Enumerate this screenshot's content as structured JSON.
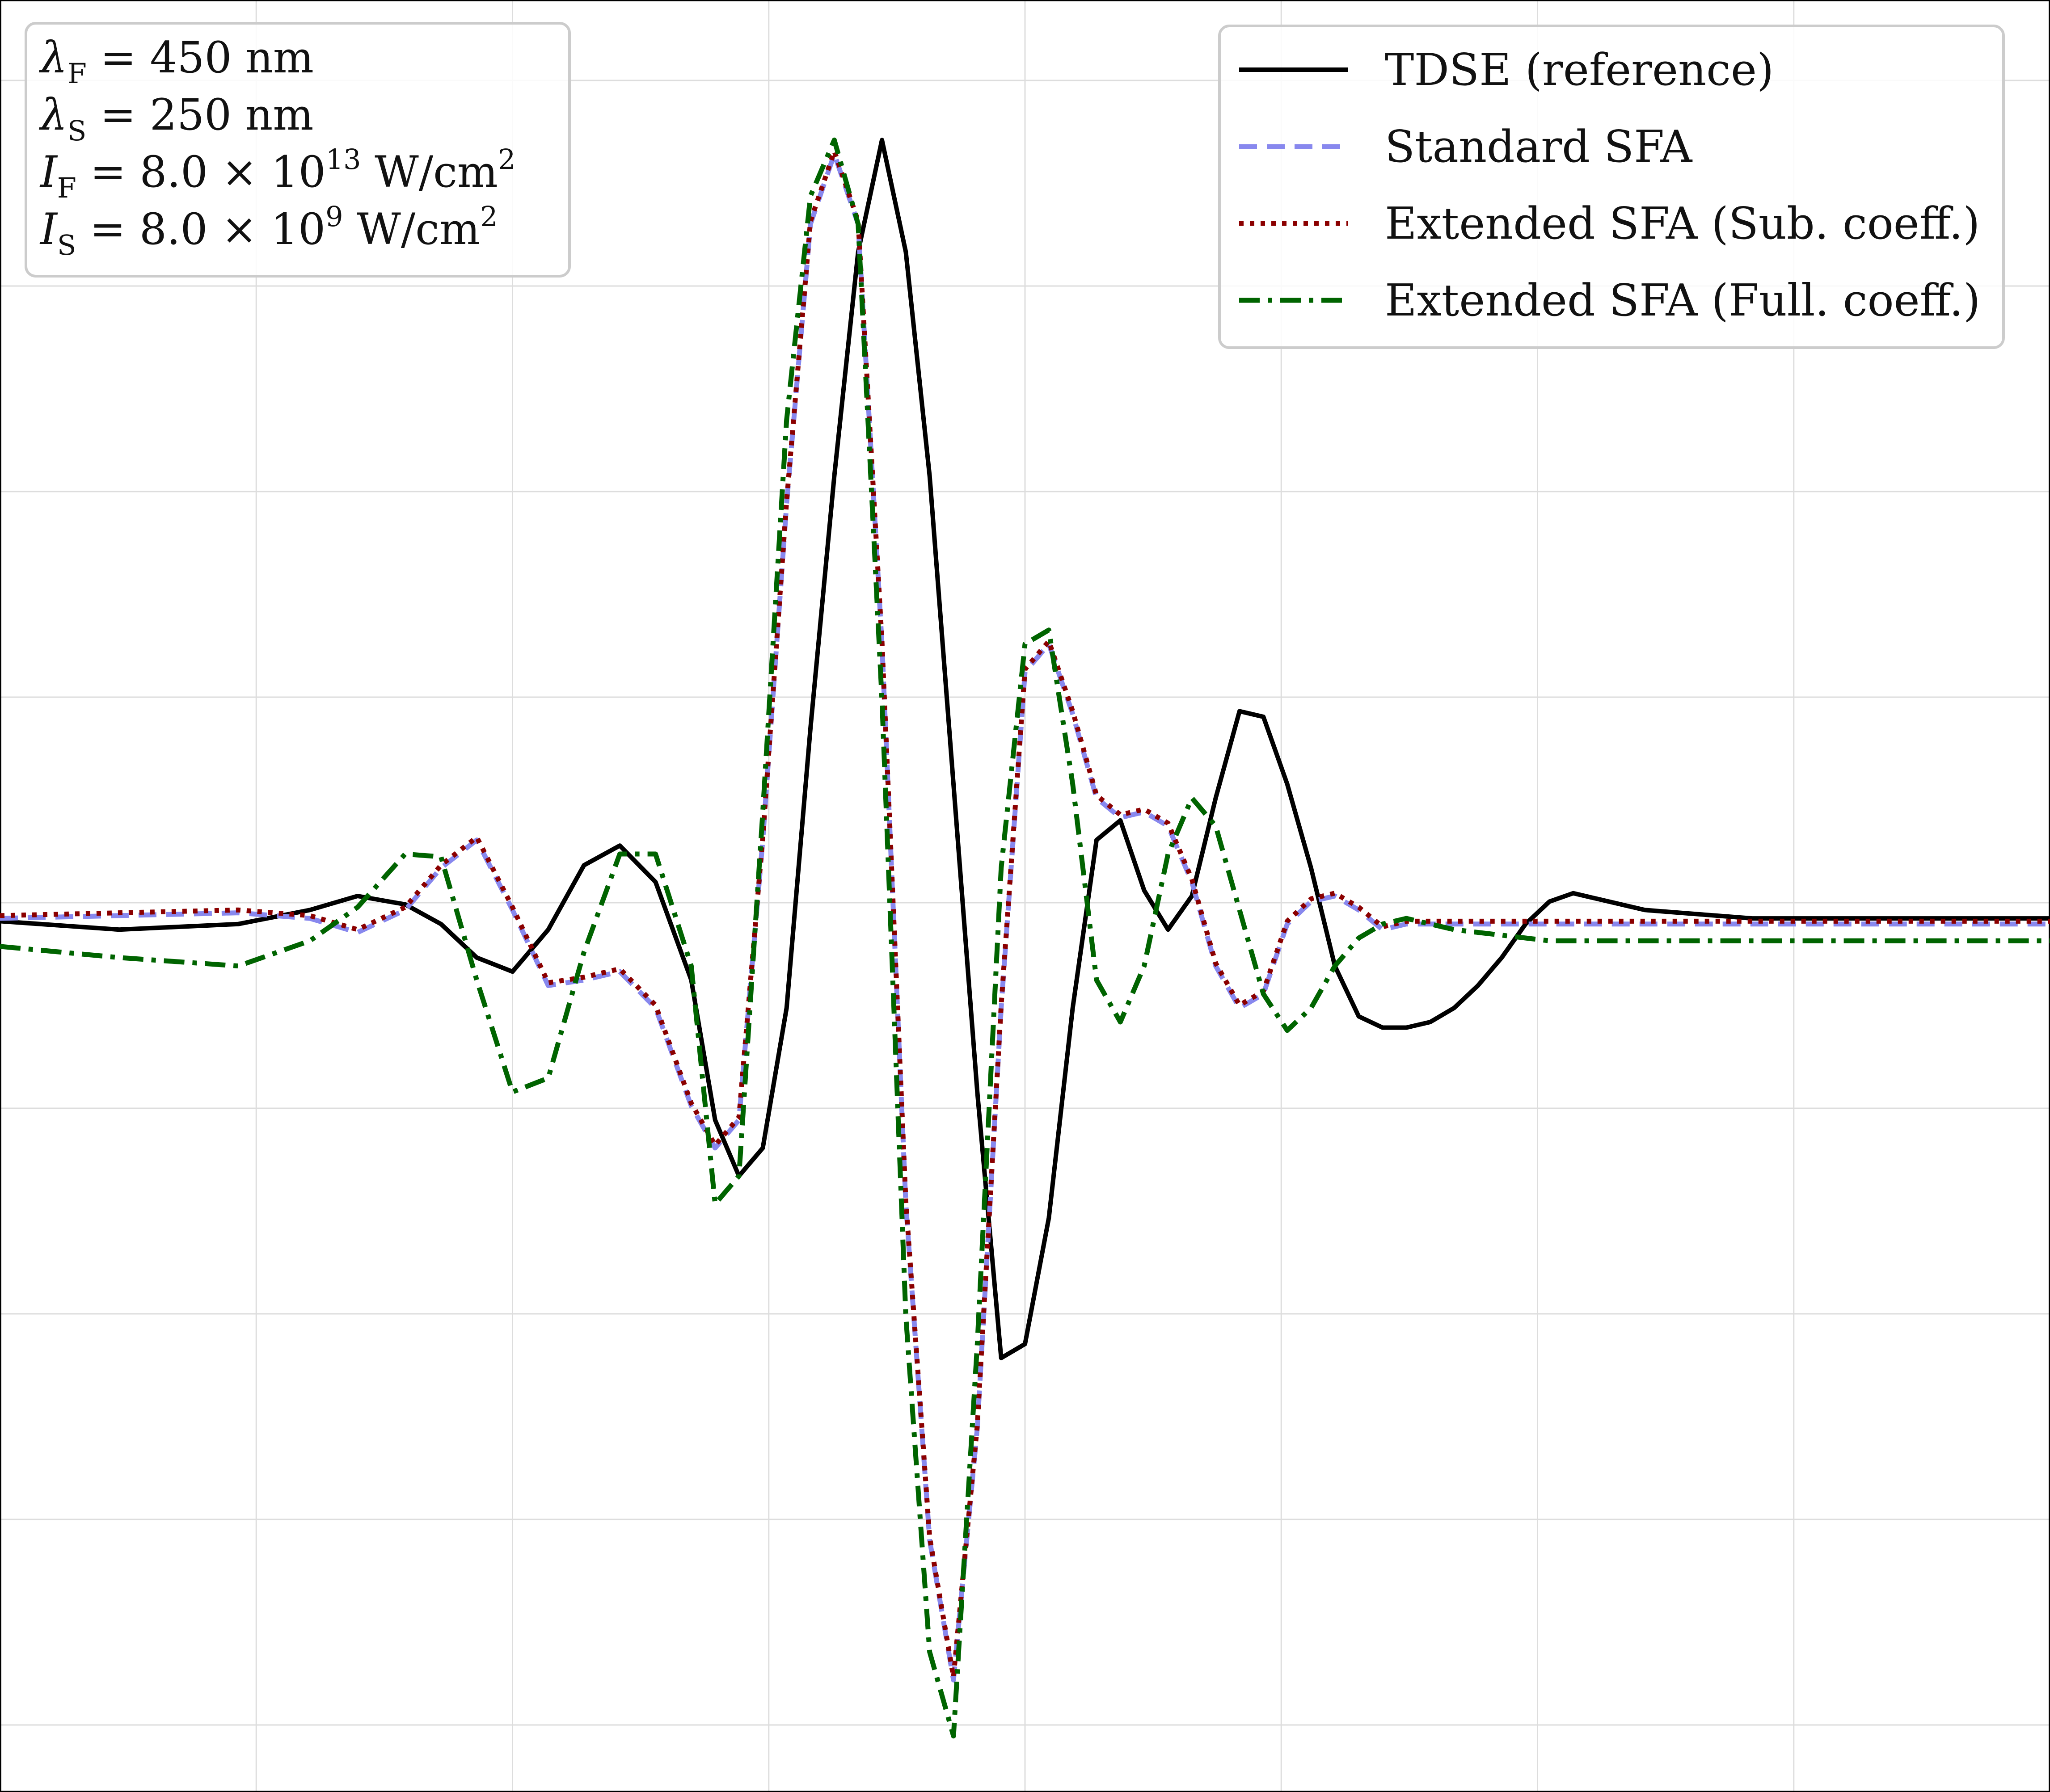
{
  "chart_data": {
    "type": "line",
    "x": [
      -4.3,
      -3.8,
      -3.3,
      -3.0,
      -2.8,
      -2.6,
      -2.45,
      -2.3,
      -2.15,
      -2.0,
      -1.85,
      -1.7,
      -1.55,
      -1.4,
      -1.3,
      -1.2,
      -1.1,
      -1.0,
      -0.9,
      -0.8,
      -0.7,
      -0.6,
      -0.5,
      -0.4,
      -0.3,
      -0.2,
      -0.1,
      0.0,
      0.1,
      0.2,
      0.3,
      0.4,
      0.5,
      0.6,
      0.7,
      0.8,
      0.9,
      1.0,
      1.1,
      1.2,
      1.3,
      1.4,
      1.5,
      1.6,
      1.7,
      1.8,
      1.9,
      2.0,
      2.1,
      2.2,
      2.3,
      2.4,
      2.5,
      2.6,
      2.75,
      2.9,
      3.05,
      3.2,
      3.4,
      3.6,
      3.8,
      4.0,
      4.3
    ],
    "series": [
      {
        "name": "TDSE (reference)",
        "color": "#000000",
        "style": "solid",
        "values": [
          0.01,
          -0.02,
          0.0,
          0.05,
          0.1,
          0.07,
          0.0,
          -0.12,
          -0.17,
          -0.02,
          0.21,
          0.28,
          0.15,
          -0.2,
          -0.7,
          -0.9,
          -0.8,
          -0.3,
          0.7,
          1.6,
          2.4,
          2.8,
          2.4,
          1.6,
          0.5,
          -0.6,
          -1.55,
          -1.5,
          -1.05,
          -0.3,
          0.3,
          0.37,
          0.12,
          -0.02,
          0.1,
          0.45,
          0.76,
          0.74,
          0.5,
          0.2,
          -0.15,
          -0.33,
          -0.37,
          -0.37,
          -0.35,
          -0.3,
          -0.22,
          -0.12,
          0.0,
          0.08,
          0.11,
          0.09,
          0.07,
          0.05,
          0.04,
          0.03,
          0.02,
          0.02,
          0.02,
          0.02,
          0.02,
          0.02,
          0.02
        ]
      },
      {
        "name": "Standard SFA",
        "color": "#8888ee",
        "style": "dashed",
        "values": [
          0.02,
          0.03,
          0.04,
          0.02,
          -0.03,
          0.05,
          0.2,
          0.3,
          0.05,
          -0.22,
          -0.2,
          -0.17,
          -0.3,
          -0.65,
          -0.8,
          -0.7,
          0.3,
          1.5,
          2.5,
          2.75,
          2.5,
          1.0,
          -1.0,
          -2.2,
          -2.7,
          -1.8,
          -0.3,
          0.9,
          1.0,
          0.75,
          0.45,
          0.38,
          0.4,
          0.35,
          0.15,
          -0.15,
          -0.3,
          -0.25,
          0.0,
          0.08,
          0.1,
          0.05,
          -0.02,
          0.0,
          0.0,
          0.0,
          0.0,
          0.0,
          0.0,
          0.0,
          0.0,
          0.0,
          0.0,
          0.0,
          0.0,
          0.0,
          0.0,
          0.0,
          0.0,
          0.0,
          0.0,
          0.0,
          0.0
        ]
      },
      {
        "name": "Extended SFA (Sub. coeff.)",
        "color": "#8b0000",
        "style": "dotted",
        "values": [
          0.03,
          0.04,
          0.05,
          0.03,
          -0.02,
          0.06,
          0.21,
          0.31,
          0.06,
          -0.21,
          -0.19,
          -0.16,
          -0.29,
          -0.64,
          -0.79,
          -0.69,
          0.31,
          1.51,
          2.51,
          2.76,
          2.51,
          1.01,
          -0.99,
          -2.19,
          -2.69,
          -1.79,
          -0.29,
          0.91,
          1.01,
          0.76,
          0.46,
          0.39,
          0.41,
          0.36,
          0.16,
          -0.14,
          -0.29,
          -0.24,
          0.01,
          0.09,
          0.11,
          0.06,
          -0.01,
          0.01,
          0.01,
          0.01,
          0.01,
          0.01,
          0.01,
          0.01,
          0.01,
          0.01,
          0.01,
          0.01,
          0.01,
          0.01,
          0.01,
          0.01,
          0.01,
          0.01,
          0.01,
          0.01,
          0.01
        ]
      },
      {
        "name": "Extended SFA (Full. coeff.)",
        "color": "#006400",
        "style": "dashdot",
        "values": [
          -0.08,
          -0.12,
          -0.15,
          -0.06,
          0.06,
          0.25,
          0.24,
          -0.2,
          -0.6,
          -0.55,
          -0.1,
          0.25,
          0.25,
          -0.15,
          -1.0,
          -0.9,
          0.4,
          1.8,
          2.6,
          2.8,
          2.5,
          0.8,
          -1.4,
          -2.6,
          -2.9,
          -1.5,
          0.2,
          1.0,
          1.05,
          0.5,
          -0.2,
          -0.35,
          -0.15,
          0.25,
          0.45,
          0.35,
          0.05,
          -0.25,
          -0.38,
          -0.3,
          -0.15,
          -0.05,
          0.0,
          0.02,
          0.0,
          -0.02,
          -0.03,
          -0.04,
          -0.05,
          -0.06,
          -0.06,
          -0.06,
          -0.06,
          -0.06,
          -0.06,
          -0.06,
          -0.06,
          -0.06,
          -0.06,
          -0.06,
          -0.06,
          -0.06,
          -0.06
        ]
      }
    ],
    "xlim": [
      -4.3,
      4.3
    ],
    "ylim": [
      -3.1,
      3.3
    ],
    "xlabel": "",
    "ylabel": "",
    "title": "",
    "grid": true,
    "legend": "top-right",
    "params_box": {
      "lines": [
        {
          "sym": "λ",
          "sub": "F",
          "rest": " = 450 nm",
          "sup": ""
        },
        {
          "sym": "λ",
          "sub": "S",
          "rest": " = 250 nm",
          "sup": ""
        },
        {
          "sym": "I",
          "sub": "F",
          "rest": " = 8.0 × 10",
          "sup": "13",
          "tail": " W/cm",
          "tailsup": "2"
        },
        {
          "sym": "I",
          "sub": "S",
          "rest": " = 8.0 × 10",
          "sup": "9",
          "tail": " W/cm",
          "tailsup": "2"
        }
      ]
    }
  }
}
